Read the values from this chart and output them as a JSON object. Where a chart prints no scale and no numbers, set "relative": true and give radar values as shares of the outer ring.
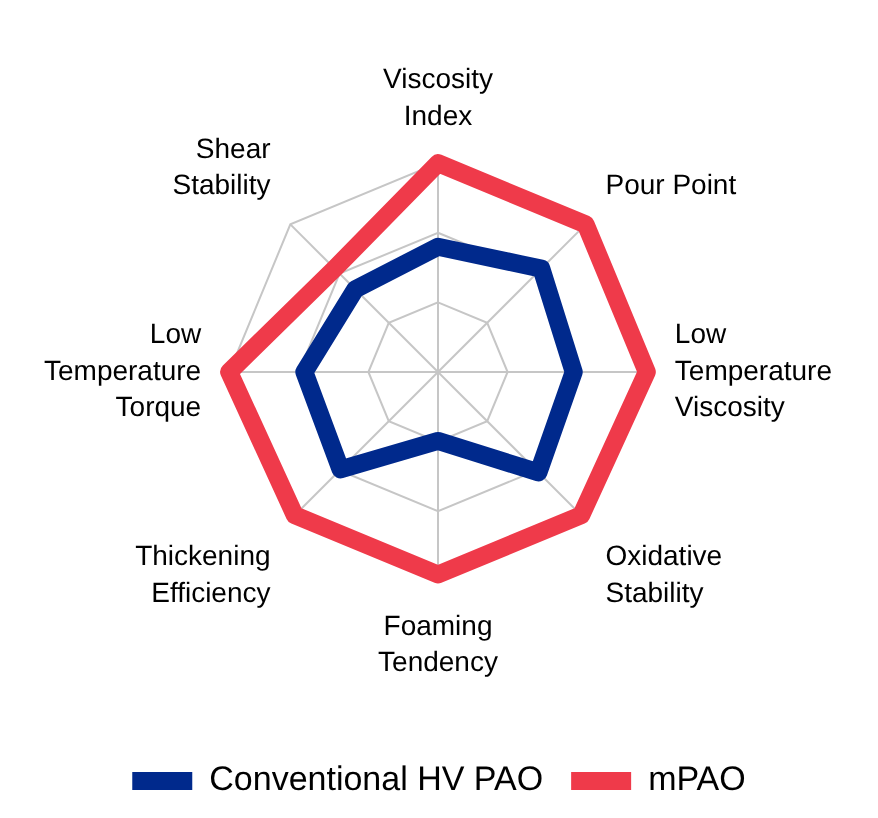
{
  "chart_data": {
    "type": "radar",
    "categories": [
      "Viscosity Index",
      "Pour Point",
      "Low Temperature Viscosity",
      "Oxidative Stability",
      "Foaming Tendency",
      "Thickening Efficiency",
      "Low Temperature Torque",
      "Shear Stability"
    ],
    "relative": true,
    "series": [
      {
        "name": "Conventional HV PAO",
        "color": "#00298c",
        "values": [
          0.6,
          0.7,
          0.65,
          0.68,
          0.33,
          0.66,
          0.64,
          0.56
        ]
      },
      {
        "name": "mPAO",
        "color": "#ef3a4a",
        "values": [
          1,
          1,
          1,
          0.97,
          0.97,
          0.97,
          1,
          0.7
        ]
      }
    ],
    "grid": true,
    "legend": "bottom"
  }
}
